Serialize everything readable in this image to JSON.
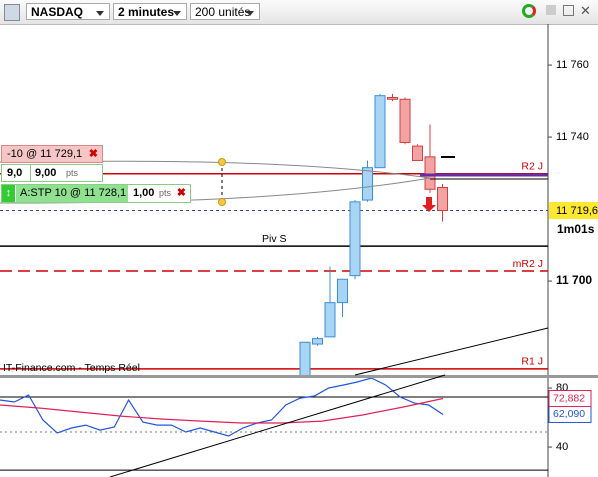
{
  "toolbar": {
    "symbol": "NASDAQ",
    "period": "2 minutes",
    "units": "200 unités"
  },
  "orders": {
    "sell": {
      "label": "-10 @ 11 729,1"
    },
    "target": {
      "qty": "9,0",
      "distance": "9,00",
      "unit": "pts"
    },
    "stop": {
      "label": "A:STP 10 @ 11 728,1",
      "distance": "1,00",
      "unit": "pts"
    }
  },
  "chart_data": {
    "type": "candlestick",
    "source": "IT-Finance.com - Temps Réel",
    "open": [
      11670,
      11682.5,
      11684.5,
      11694,
      11701.5,
      11722.5,
      11731.5,
      11751,
      11750.5,
      11737.5,
      11734.5,
      11726
    ],
    "high": [
      11683,
      11684.5,
      11704,
      11700.5,
      11722.5,
      11733.5,
      11752,
      11752,
      11751,
      11738,
      11743.5,
      11727
    ],
    "low": [
      11670,
      11682,
      11684.5,
      11690,
      11700.5,
      11722,
      11731.5,
      11750,
      11738,
      11733.5,
      11724.5,
      11716.5
    ],
    "close": [
      11683,
      11684,
      11694,
      11700.5,
      11722,
      11731.5,
      11751.5,
      11750.5,
      11738.5,
      11733.5,
      11725.5,
      11719.6
    ],
    "up_color": "#a8d4f5",
    "down_color": "#f3a3a3",
    "ylim": [
      11673.9,
      11770.3
    ],
    "yticks": [
      {
        "value": 11700,
        "label": "11 700"
      },
      {
        "value": 11740,
        "label": "11 740"
      },
      {
        "value": 11760,
        "label": "11 760"
      }
    ],
    "levels": [
      {
        "name": "R2 J",
        "value": 11729.8,
        "color": "#d00000",
        "dashed": false
      },
      {
        "name": "Piv S",
        "value": 11709.7,
        "color": "#000000",
        "dashed": false
      },
      {
        "name": "mR2 J",
        "value": 11702.8,
        "color": "#d00000",
        "dashed": true
      },
      {
        "name": "R1 J",
        "value": 11675.6,
        "color": "#d00000",
        "dashed": false
      }
    ],
    "last_price": {
      "value": 11719.6,
      "label": "11 719,6"
    },
    "timer": "1m01s",
    "oscillator": {
      "ylim": [
        19.7,
        86.8
      ],
      "yticks": [
        40,
        80
      ],
      "levels": [
        73.9,
        50.2,
        24.4
      ],
      "series": [
        {
          "color": "#2255dd",
          "values": [
            71.9,
            70.5,
            75.3,
            58.3,
            49.5,
            52.9,
            54.9,
            51.5,
            53.6,
            71.9,
            56.9,
            54.9,
            54.9,
            50.2,
            52.9,
            50.2,
            47.5,
            52.9,
            56.3,
            58.3,
            68.5,
            73.2,
            74.6,
            80,
            82,
            84.1,
            86.8,
            82,
            73.9,
            69.8,
            68.5,
            62.09
          ],
          "last_label": "62,090"
        },
        {
          "color": "#dd2255",
          "values": [
            68.5,
            66.4,
            63.7,
            61,
            59,
            57.6,
            56.3,
            56.3,
            57.6,
            61.7,
            67.1,
            72.882
          ],
          "last_label": "72,882"
        }
      ]
    }
  }
}
